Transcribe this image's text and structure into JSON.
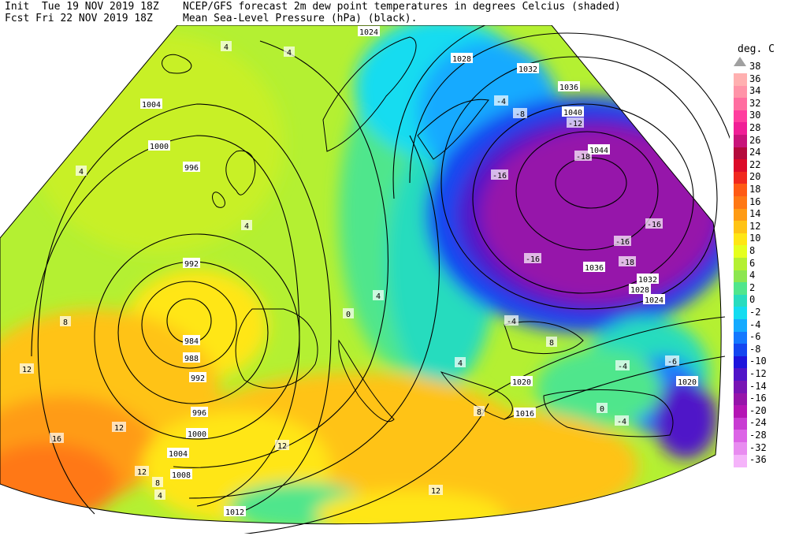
{
  "header": {
    "init_line": "Init  Tue 19 NOV 2019 18Z",
    "fcst_line": "Fcst Fri 22 NOV 2019 18Z",
    "title_line1": "NCEP/GFS forecast 2m dew point temperatures in degrees Celcius (shaded)",
    "title_line2": "Mean Sea-Level Pressure (hPa) (black)."
  },
  "legend": {
    "title": "deg. C",
    "entries": [
      {
        "label": "38",
        "color": "#ffffff"
      },
      {
        "label": "36",
        "color": "#ffb0b0"
      },
      {
        "label": "34",
        "color": "#ff94a8"
      },
      {
        "label": "32",
        "color": "#ff6ea0"
      },
      {
        "label": "30",
        "color": "#ff3d9e"
      },
      {
        "label": "28",
        "color": "#f01e96"
      },
      {
        "label": "26",
        "color": "#c8147a"
      },
      {
        "label": "24",
        "color": "#b40a3c"
      },
      {
        "label": "22",
        "color": "#dc0a28"
      },
      {
        "label": "20",
        "color": "#f0281e"
      },
      {
        "label": "18",
        "color": "#ff5a14"
      },
      {
        "label": "16",
        "color": "#ff7814"
      },
      {
        "label": "14",
        "color": "#ff9b14"
      },
      {
        "label": "12",
        "color": "#ffc314"
      },
      {
        "label": "10",
        "color": "#ffe614"
      },
      {
        "label": "8",
        "color": "#e6ff1e"
      },
      {
        "label": "6",
        "color": "#b4f032"
      },
      {
        "label": "4",
        "color": "#8ce650"
      },
      {
        "label": "2",
        "color": "#50e68c"
      },
      {
        "label": "0",
        "color": "#28dcbe"
      },
      {
        "label": "-2",
        "color": "#14dcf0"
      },
      {
        "label": "-4",
        "color": "#14aaff"
      },
      {
        "label": "-6",
        "color": "#1478ff"
      },
      {
        "label": "-8",
        "color": "#1446f0"
      },
      {
        "label": "-10",
        "color": "#1e14dc"
      },
      {
        "label": "-12",
        "color": "#5014c8"
      },
      {
        "label": "-14",
        "color": "#7814b4"
      },
      {
        "label": "-16",
        "color": "#9614aa"
      },
      {
        "label": "-20",
        "color": "#b414b4"
      },
      {
        "label": "-24",
        "color": "#c83cd2"
      },
      {
        "label": "-28",
        "color": "#dc64e6"
      },
      {
        "label": "-32",
        "color": "#e88cf0"
      },
      {
        "label": "-36",
        "color": "#f5b4fa"
      }
    ]
  },
  "isobar_labels": [
    {
      "text": "1024"
    },
    {
      "text": "1028"
    },
    {
      "text": "1032"
    },
    {
      "text": "1036"
    },
    {
      "text": "1040"
    },
    {
      "text": "1044"
    },
    {
      "text": "1004"
    },
    {
      "text": "1000"
    },
    {
      "text": "996"
    },
    {
      "text": "992"
    },
    {
      "text": "984"
    },
    {
      "text": "988"
    },
    {
      "text": "992"
    },
    {
      "text": "996"
    },
    {
      "text": "1000"
    },
    {
      "text": "1004"
    },
    {
      "text": "1008"
    },
    {
      "text": "1012"
    },
    {
      "text": "1020"
    },
    {
      "text": "1016"
    },
    {
      "text": "1036"
    },
    {
      "text": "1032"
    },
    {
      "text": "1028"
    },
    {
      "text": "1024"
    },
    {
      "text": "1020"
    }
  ],
  "dewpoint_labels": [
    {
      "text": "4"
    },
    {
      "text": "4"
    },
    {
      "text": "4"
    },
    {
      "text": "4"
    },
    {
      "text": "-8"
    },
    {
      "text": "-12"
    },
    {
      "text": "-18"
    },
    {
      "text": "-16"
    },
    {
      "text": "-16"
    },
    {
      "text": "-16"
    },
    {
      "text": "-16"
    },
    {
      "text": "-18"
    },
    {
      "text": "-4"
    },
    {
      "text": "-4"
    },
    {
      "text": "-6"
    },
    {
      "text": "-4"
    },
    {
      "text": "-4"
    },
    {
      "text": "8"
    },
    {
      "text": "12"
    },
    {
      "text": "16"
    },
    {
      "text": "12"
    },
    {
      "text": "12"
    },
    {
      "text": "8"
    },
    {
      "text": "4"
    },
    {
      "text": "0"
    },
    {
      "text": "4"
    },
    {
      "text": "8"
    },
    {
      "text": "12"
    },
    {
      "text": "12"
    },
    {
      "text": "8"
    },
    {
      "text": "4"
    },
    {
      "text": "0"
    }
  ]
}
